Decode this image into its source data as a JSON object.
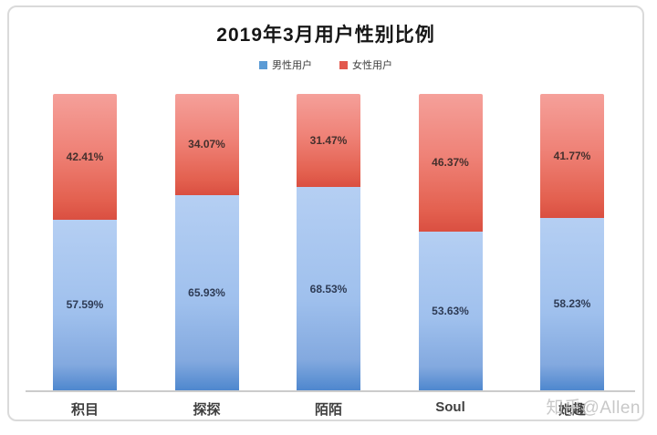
{
  "watermark": {
    "text": "知乎@Allen",
    "color": "#c3c3c3"
  },
  "colors": {
    "male_accent": "#5B9BD5",
    "female_accent": "#E2584D",
    "card_border": "#dadada",
    "axis_line": "#cccccc"
  },
  "chart_data": {
    "type": "bar",
    "variant": "stacked-100-percent",
    "title": "2019年3月用户性别比例",
    "xlabel": "",
    "ylabel": "",
    "ylim": [
      0,
      100
    ],
    "grid": false,
    "legend_position": "top",
    "categories": [
      "积目",
      "探探",
      "陌陌",
      "Soul",
      "她趣"
    ],
    "series": [
      {
        "name": "男性用户",
        "color": "#5B9BD5",
        "values": [
          57.59,
          65.93,
          68.53,
          53.63,
          58.23
        ],
        "labels": [
          "57.59%",
          "65.93%",
          "68.53%",
          "53.63%",
          "58.23%"
        ]
      },
      {
        "name": "女性用户",
        "color": "#E2584D",
        "values": [
          42.41,
          34.07,
          31.47,
          46.37,
          41.77
        ],
        "labels": [
          "42.41%",
          "34.07%",
          "31.47%",
          "46.37%",
          "41.77%"
        ]
      }
    ]
  }
}
